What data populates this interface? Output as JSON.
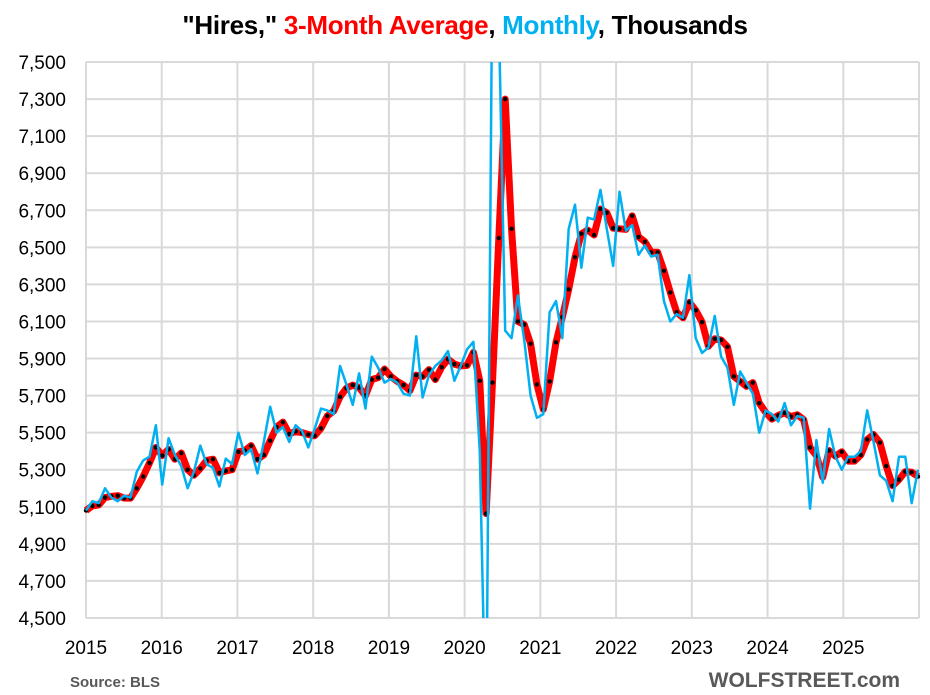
{
  "title": {
    "part1": "\"Hires,\" ",
    "part2": "3-Month Average",
    "sep1": ", ",
    "part3": "Monthly",
    "sep2": ", ",
    "part4": "Thousands"
  },
  "footer": {
    "source": "Source: BLS",
    "brand": "WOLFSTREET.com"
  },
  "chart_data": {
    "type": "line",
    "title": "\"Hires,\" 3-Month Average, Monthly, Thousands",
    "xlabel": "",
    "ylabel": "",
    "x_start": "2015-01",
    "x_ticks": [
      "2015",
      "2016",
      "2017",
      "2018",
      "2019",
      "2020",
      "2021",
      "2022",
      "2023",
      "2024",
      "2025"
    ],
    "y_ticks": [
      "4,500",
      "4,700",
      "4,900",
      "5,100",
      "5,300",
      "5,500",
      "5,700",
      "5,900",
      "6,100",
      "6,300",
      "6,500",
      "6,700",
      "6,900",
      "7,100",
      "7,300",
      "7,500"
    ],
    "ylim": [
      4500,
      7500
    ],
    "xlim": [
      2015,
      2026
    ],
    "grid": true,
    "colors": {
      "avg": "#ff0000",
      "monthly": "#00b0f0",
      "grid": "#d9d9d9"
    },
    "series": [
      {
        "name": "Monthly",
        "values": [
          5080,
          5130,
          5120,
          5200,
          5150,
          5130,
          5160,
          5150,
          5290,
          5350,
          5370,
          5540,
          5220,
          5470,
          5380,
          5320,
          5200,
          5290,
          5430,
          5330,
          5310,
          5210,
          5360,
          5330,
          5500,
          5380,
          5410,
          5280,
          5450,
          5640,
          5500,
          5530,
          5450,
          5540,
          5510,
          5420,
          5520,
          5630,
          5620,
          5600,
          5860,
          5760,
          5650,
          5820,
          5630,
          5910,
          5850,
          5770,
          5790,
          5770,
          5710,
          5700,
          6020,
          5690,
          5810,
          5860,
          5890,
          5940,
          5780,
          5860,
          5950,
          5990,
          5400,
          3800,
          8110,
          7740,
          6050,
          6010,
          6240,
          6000,
          5700,
          5580,
          5600,
          6150,
          6210,
          6010,
          6600,
          6730,
          6390,
          6660,
          6650,
          6810,
          6600,
          6400,
          6800,
          6590,
          6620,
          6460,
          6510,
          6450,
          6460,
          6210,
          6100,
          6140,
          6120,
          6350,
          6010,
          5930,
          5960,
          6130,
          5910,
          5850,
          5650,
          5830,
          5770,
          5710,
          5500,
          5620,
          5600,
          5560,
          5660,
          5540,
          5590,
          5580,
          5090,
          5460,
          5230,
          5520,
          5370,
          5300,
          5370,
          5370,
          5400,
          5620,
          5450,
          5270,
          5240,
          5130,
          5370,
          5370,
          5120,
          5300
        ]
      },
      {
        "name": "3-Month Average",
        "derived_from": "Monthly"
      }
    ]
  }
}
